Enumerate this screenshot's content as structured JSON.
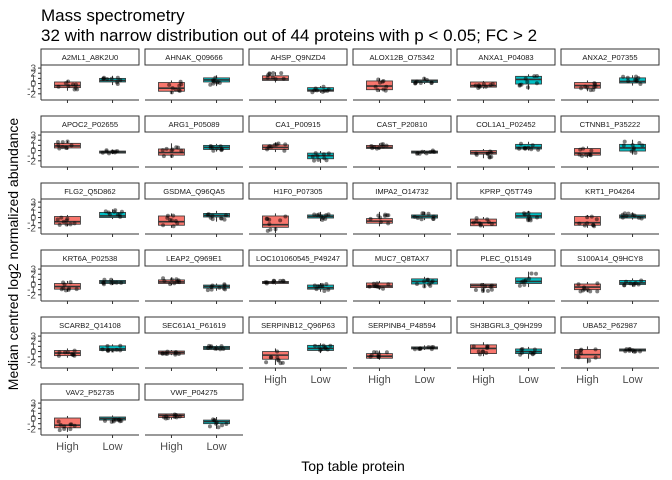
{
  "title": "Mass spectrometry",
  "subtitle": "32 with narrow distribution out of 44 proteins with p < 0.05; FC > 2",
  "chart_data": {
    "type": "boxplot",
    "xlabel": "Top table protein",
    "ylabel": "Median centred log2 normalized abundance",
    "categories": [
      "High",
      "Low"
    ],
    "colors": {
      "High": "#F8766D",
      "Low": "#00BFC4"
    },
    "ylim": [
      -3.2,
      3.6
    ],
    "yticks": [
      -2,
      -1,
      0,
      1,
      2,
      3
    ],
    "ytick_labels": [
      "-2",
      "-1",
      "0",
      "1",
      "2",
      "3"
    ],
    "layout": {
      "ncol": 6
    },
    "panels": [
      {
        "name": "A2ML1_A8K2U0",
        "boxes": [
          [
            -1.4,
            -0.8,
            -0.4,
            0.3,
            0.6
          ],
          [
            -0.3,
            0.3,
            0.6,
            1.0,
            1.5
          ]
        ]
      },
      {
        "name": "AHNAK_Q09666",
        "boxes": [
          [
            -2.0,
            -1.5,
            -0.9,
            0.2,
            0.6
          ],
          [
            -0.5,
            0.3,
            0.7,
            1.1,
            1.6
          ]
        ]
      },
      {
        "name": "AHSP_Q9NZD4",
        "boxes": [
          [
            0.2,
            0.6,
            0.9,
            1.5,
            2.2
          ],
          [
            -1.8,
            -1.5,
            -1.3,
            -0.8,
            -0.5
          ]
        ]
      },
      {
        "name": "ALOX12B_O75342",
        "boxes": [
          [
            -1.6,
            -1.2,
            -0.5,
            0.5,
            1.0
          ],
          [
            -0.1,
            0.2,
            0.5,
            0.7,
            1.2
          ]
        ]
      },
      {
        "name": "ANXA1_P04083",
        "boxes": [
          [
            -1.0,
            -0.7,
            -0.4,
            0.3,
            0.5
          ],
          [
            -1.2,
            -0.1,
            0.8,
            1.4,
            1.8
          ]
        ]
      },
      {
        "name": "ANXA2_P07355",
        "boxes": [
          [
            -1.5,
            -0.9,
            -0.4,
            0.2,
            0.6
          ],
          [
            -0.4,
            0.1,
            0.4,
            1.1,
            1.6
          ]
        ]
      },
      {
        "name": "APOC2_P02655",
        "boxes": [
          [
            0.2,
            0.5,
            0.9,
            1.4,
            1.9
          ],
          [
            -0.7,
            -0.5,
            -0.3,
            -0.1,
            0.2
          ]
        ]
      },
      {
        "name": "ARG1_P05089",
        "boxes": [
          [
            -1.4,
            -0.9,
            -0.4,
            0.3,
            1.4
          ],
          [
            -0.2,
            0.2,
            0.6,
            1.0,
            1.3
          ]
        ]
      },
      {
        "name": "CA1_P00915",
        "boxes": [
          [
            -0.3,
            0.2,
            0.6,
            1.1,
            1.6
          ],
          [
            -2.4,
            -1.6,
            -1.0,
            -0.5,
            -0.1
          ]
        ]
      },
      {
        "name": "CAST_P20810",
        "boxes": [
          [
            0.2,
            0.4,
            0.6,
            1.0,
            1.4
          ],
          [
            -0.7,
            -0.5,
            -0.3,
            -0.1,
            0.1
          ]
        ]
      },
      {
        "name": "COL1A1_P02452",
        "boxes": [
          [
            -1.5,
            -0.7,
            -0.4,
            0.0,
            0.3
          ],
          [
            0.0,
            0.3,
            0.6,
            1.2,
            1.7
          ]
        ]
      },
      {
        "name": "CTNNB1_P35222",
        "boxes": [
          [
            -1.4,
            -0.9,
            -0.5,
            0.4,
            0.8
          ],
          [
            -0.8,
            -0.1,
            0.5,
            1.2,
            2.1
          ]
        ]
      },
      {
        "name": "FLG2_Q5D862",
        "boxes": [
          [
            -1.7,
            -1.3,
            -0.8,
            0.2,
            0.5
          ],
          [
            -0.3,
            0.0,
            0.3,
            1.0,
            1.6
          ]
        ]
      },
      {
        "name": "GSDMA_Q96QA5",
        "boxes": [
          [
            -2.0,
            -1.5,
            -0.8,
            0.3,
            0.8
          ],
          [
            -0.8,
            0.1,
            0.4,
            0.8,
            1.3
          ]
        ]
      },
      {
        "name": "H1F0_P07305",
        "boxes": [
          [
            -3.0,
            -1.9,
            -1.4,
            0.3,
            0.8
          ],
          [
            -0.7,
            -0.1,
            0.2,
            0.5,
            1.1
          ]
        ]
      },
      {
        "name": "IMPA2_O14732",
        "boxes": [
          [
            -1.7,
            -1.1,
            -0.7,
            -0.2,
            1.1
          ],
          [
            -0.5,
            -0.1,
            0.2,
            0.5,
            1.1
          ]
        ]
      },
      {
        "name": "KPRP_Q5T749",
        "boxes": [
          [
            -2.0,
            -1.6,
            -1.0,
            -0.3,
            0.1
          ],
          [
            -0.8,
            -0.1,
            0.3,
            0.9,
            1.3
          ]
        ]
      },
      {
        "name": "KRT1_P04264",
        "boxes": [
          [
            -2.0,
            -1.5,
            -1.0,
            0.2,
            0.5
          ],
          [
            -0.4,
            -0.1,
            0.2,
            0.5,
            1.0
          ]
        ]
      },
      {
        "name": "KRT6A_P02538",
        "boxes": [
          [
            -1.4,
            -0.9,
            -0.4,
            0.2,
            0.7
          ],
          [
            -0.1,
            0.2,
            0.5,
            0.8,
            1.1
          ]
        ]
      },
      {
        "name": "LEAP2_Q969E1",
        "boxes": [
          [
            -0.1,
            0.2,
            0.5,
            0.9,
            1.4
          ],
          [
            -1.2,
            -0.7,
            -0.4,
            -0.1,
            0.2
          ]
        ]
      },
      {
        "name": "LOC101060545_P49247",
        "boxes": [
          [
            0.0,
            0.2,
            0.4,
            0.6,
            0.8
          ],
          [
            -1.4,
            -0.9,
            -0.6,
            -0.1,
            0.3
          ]
        ]
      },
      {
        "name": "MUC7_Q8TAX7",
        "boxes": [
          [
            -1.0,
            -0.6,
            -0.3,
            0.3,
            0.7
          ],
          [
            -0.6,
            0.1,
            0.6,
            1.1,
            1.5
          ]
        ]
      },
      {
        "name": "PLEC_Q15149",
        "boxes": [
          [
            -1.5,
            -0.6,
            -0.2,
            0.1,
            0.3
          ],
          [
            -0.5,
            0.2,
            0.6,
            1.3,
            2.5
          ]
        ]
      },
      {
        "name": "S100A14_Q9HCY8",
        "boxes": [
          [
            -1.5,
            -1.0,
            -0.5,
            0.1,
            0.5
          ],
          [
            -0.4,
            0.0,
            0.3,
            0.8,
            1.2
          ]
        ]
      },
      {
        "name": "SCARB2_Q14108",
        "boxes": [
          [
            -1.2,
            -0.8,
            -0.3,
            0.2,
            0.6
          ],
          [
            -0.1,
            0.2,
            0.5,
            1.1,
            1.4
          ]
        ]
      },
      {
        "name": "SEC61A1_P61619",
        "boxes": [
          [
            -0.7,
            -0.5,
            -0.2,
            0.1,
            0.3
          ],
          [
            0.2,
            0.4,
            0.7,
            1.0,
            1.2
          ]
        ]
      },
      {
        "name": "SERPINB12_Q96P63",
        "boxes": [
          [
            -2.6,
            -1.5,
            -0.7,
            0.0,
            0.6
          ],
          [
            -0.3,
            0.2,
            0.6,
            1.2,
            1.6
          ]
        ]
      },
      {
        "name": "SERPINB4_P48594",
        "boxes": [
          [
            -1.6,
            -1.3,
            -0.9,
            -0.4,
            0.2
          ],
          [
            0.3,
            0.5,
            0.7,
            0.9,
            1.2
          ]
        ]
      },
      {
        "name": "SH3BGRL3_Q9H299",
        "boxes": [
          [
            -0.9,
            -0.4,
            0.6,
            1.3,
            1.8
          ],
          [
            -1.4,
            -0.4,
            0.0,
            0.5,
            0.9
          ]
        ]
      },
      {
        "name": "UBA52_P62987",
        "boxes": [
          [
            -2.3,
            -1.3,
            -0.6,
            0.4,
            1.0
          ],
          [
            -0.3,
            0.1,
            0.3,
            0.5,
            0.6
          ]
        ]
      },
      {
        "name": "VAV2_P52735",
        "boxes": [
          [
            -2.6,
            -1.8,
            -1.3,
            0.1,
            0.5
          ],
          [
            -0.8,
            -0.3,
            0.0,
            0.3,
            0.6
          ]
        ]
      },
      {
        "name": "VWF_P04275",
        "boxes": [
          [
            -0.2,
            0.2,
            0.6,
            0.9,
            1.0
          ],
          [
            -2.0,
            -1.0,
            -0.6,
            -0.3,
            0.3
          ]
        ]
      }
    ]
  }
}
